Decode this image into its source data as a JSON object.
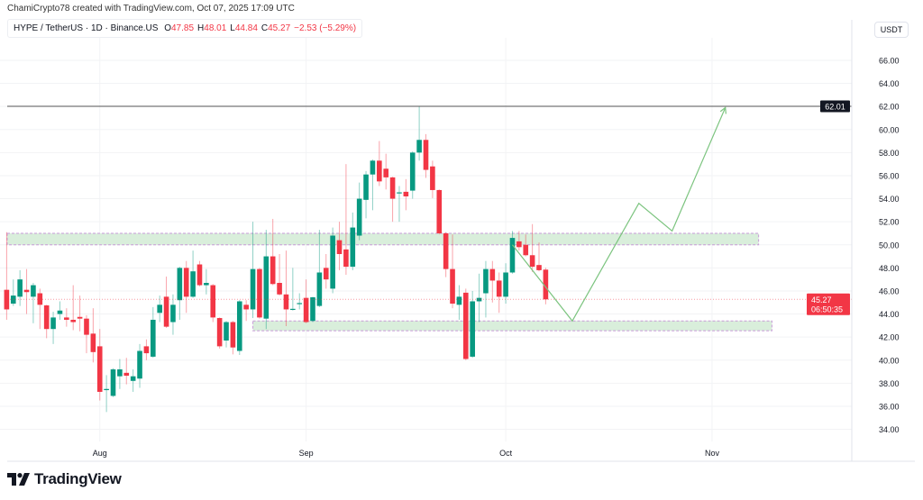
{
  "header": {
    "credit": "ChamiCrypto78 created with TradingView.com, Oct 07, 2025 17:09 UTC",
    "symbol": "HYPE / TetherUS · 1D · Binance.US",
    "o_label": "O",
    "o": "47.85",
    "h_label": "H",
    "h": "48.01",
    "l_label": "L",
    "l": "44.84",
    "c_label": "C",
    "c": "45.27",
    "change": "−2.53 (−5.29%)"
  },
  "logo": {
    "text": "TradingView"
  },
  "colors": {
    "up": "#089981",
    "down": "#f23645",
    "zone_fill": "#d9eedb",
    "zone_border": "#c79bd8",
    "projection": "#7cc47f",
    "level_line": "#555555"
  },
  "chart_data": {
    "type": "candlestick",
    "unit_label": "USDT",
    "xlim": [
      "2025-07-17",
      "2025-11-22"
    ],
    "ylim": [
      32.95,
      67.95
    ],
    "y_ticks": [
      "34.00",
      "36.00",
      "38.00",
      "40.00",
      "42.00",
      "44.00",
      "46.00",
      "48.00",
      "50.00",
      "52.00",
      "54.00",
      "56.00",
      "58.00",
      "60.00",
      "62.00",
      "64.00",
      "66.00"
    ],
    "x_ticks": [
      {
        "date": "2025-08-01",
        "label": "Aug"
      },
      {
        "date": "2025-09-01",
        "label": "Sep"
      },
      {
        "date": "2025-10-01",
        "label": "Oct"
      },
      {
        "date": "2025-11-01",
        "label": "Nov"
      }
    ],
    "grid": true,
    "candles_fields": [
      "date",
      "open",
      "high",
      "low",
      "close"
    ],
    "candles": [
      [
        "2025-07-18",
        46.1,
        51.1,
        43.5,
        44.4
      ],
      [
        "2025-07-19",
        44.9,
        47.0,
        44.7,
        45.6
      ],
      [
        "2025-07-20",
        45.5,
        47.8,
        44.7,
        47.0
      ],
      [
        "2025-07-21",
        46.1,
        47.9,
        44.0,
        45.9
      ],
      [
        "2025-07-22",
        45.5,
        46.7,
        43.2,
        46.5
      ],
      [
        "2025-07-23",
        45.8,
        46.2,
        42.7,
        44.8
      ],
      [
        "2025-07-24",
        44.75,
        44.8,
        41.9,
        42.7
      ],
      [
        "2025-07-25",
        42.7,
        44.2,
        41.4,
        43.7
      ],
      [
        "2025-07-26",
        44.0,
        45.1,
        43.5,
        44.3
      ],
      [
        "2025-07-27",
        43.7,
        44.5,
        42.9,
        43.5
      ],
      [
        "2025-07-28",
        43.5,
        46.5,
        42.6,
        43.3
      ],
      [
        "2025-07-29",
        43.75,
        45.6,
        42.5,
        43.6
      ],
      [
        "2025-07-30",
        43.6,
        43.9,
        40.6,
        42.2
      ],
      [
        "2025-07-31",
        42.3,
        44.5,
        39.8,
        40.7
      ],
      [
        "2025-08-01",
        41.2,
        42.7,
        36.5,
        37.25
      ],
      [
        "2025-08-02",
        37.4,
        38.7,
        35.5,
        37.5
      ],
      [
        "2025-08-03",
        36.9,
        39.3,
        36.8,
        39.2
      ],
      [
        "2025-08-04",
        38.6,
        40.1,
        37.5,
        39.2
      ],
      [
        "2025-08-05",
        38.9,
        40.2,
        37.9,
        38.65
      ],
      [
        "2025-08-06",
        38.2,
        39.2,
        37.25,
        38.6
      ],
      [
        "2025-08-07",
        38.4,
        41.4,
        37.6,
        40.8
      ],
      [
        "2025-08-08",
        41.2,
        41.8,
        40.0,
        40.6
      ],
      [
        "2025-08-09",
        40.3,
        44.6,
        40.2,
        43.5
      ],
      [
        "2025-08-10",
        44.1,
        45.6,
        43.3,
        44.8
      ],
      [
        "2025-08-11",
        45.5,
        47.25,
        42.8,
        42.9
      ],
      [
        "2025-08-12",
        43.3,
        45.7,
        42.2,
        44.8
      ],
      [
        "2025-08-13",
        45.2,
        48.1,
        43.5,
        48.0
      ],
      [
        "2025-08-14",
        48.0,
        48.6,
        44.1,
        45.5
      ],
      [
        "2025-08-15",
        45.5,
        49.5,
        45.4,
        47.7
      ],
      [
        "2025-08-16",
        48.3,
        48.6,
        46.4,
        46.5
      ],
      [
        "2025-08-17",
        46.5,
        47.9,
        45.7,
        46.7
      ],
      [
        "2025-08-18",
        46.5,
        46.6,
        43.3,
        43.7
      ],
      [
        "2025-08-19",
        43.65,
        43.7,
        41.0,
        41.2
      ],
      [
        "2025-08-20",
        41.7,
        43.4,
        41.1,
        43.3
      ],
      [
        "2025-08-21",
        43.3,
        43.4,
        40.5,
        41.1
      ],
      [
        "2025-08-22",
        40.8,
        45.2,
        40.45,
        45.1
      ],
      [
        "2025-08-23",
        44.8,
        45.2,
        43.4,
        44.4
      ],
      [
        "2025-08-24",
        44.4,
        52.0,
        43.65,
        47.9
      ],
      [
        "2025-08-25",
        47.9,
        48.0,
        43.6,
        43.7
      ],
      [
        "2025-08-26",
        43.6,
        51.3,
        42.7,
        49.0
      ],
      [
        "2025-08-27",
        49.0,
        52.25,
        46.5,
        46.6
      ],
      [
        "2025-08-28",
        46.7,
        49.2,
        45.6,
        45.7
      ],
      [
        "2025-08-29",
        45.7,
        49.5,
        42.95,
        44.4
      ],
      [
        "2025-08-30",
        44.4,
        48.0,
        44.3,
        44.45
      ],
      [
        "2025-08-31",
        44.9,
        45.8,
        44.4,
        44.95
      ],
      [
        "2025-09-01",
        45.4,
        47.0,
        43.2,
        43.3
      ],
      [
        "2025-09-02",
        43.4,
        45.5,
        43.3,
        45.45
      ],
      [
        "2025-09-03",
        44.7,
        51.3,
        44.6,
        47.6
      ],
      [
        "2025-09-04",
        48.0,
        49.2,
        46.2,
        47.0
      ],
      [
        "2025-09-05",
        46.2,
        51.5,
        45.8,
        50.8
      ],
      [
        "2025-09-06",
        50.4,
        52.0,
        47.8,
        49.2
      ],
      [
        "2025-09-07",
        49.6,
        57.0,
        47.4,
        48.1
      ],
      [
        "2025-09-08",
        48.1,
        52.8,
        47.8,
        51.5
      ],
      [
        "2025-09-09",
        50.8,
        55.4,
        50.4,
        54.0
      ],
      [
        "2025-09-10",
        53.9,
        56.4,
        52.3,
        56.1
      ],
      [
        "2025-09-11",
        56.1,
        57.4,
        53.0,
        57.3
      ],
      [
        "2025-09-12",
        57.3,
        59.0,
        55.1,
        55.5
      ],
      [
        "2025-09-13",
        56.6,
        57.9,
        54.8,
        55.85
      ],
      [
        "2025-09-14",
        55.85,
        55.9,
        52.0,
        54.0
      ],
      [
        "2025-09-15",
        54.5,
        55.1,
        52.0,
        54.55
      ],
      [
        "2025-09-16",
        54.6,
        55.7,
        53.0,
        54.2
      ],
      [
        "2025-09-17",
        54.7,
        58.1,
        54.0,
        58.0
      ],
      [
        "2025-09-18",
        58.0,
        62.0,
        57.3,
        59.1
      ],
      [
        "2025-09-19",
        59.1,
        59.6,
        55.8,
        56.5
      ],
      [
        "2025-09-20",
        56.8,
        57.3,
        54.05,
        54.75
      ],
      [
        "2025-09-21",
        54.75,
        54.8,
        50.9,
        51.0
      ],
      [
        "2025-09-22",
        51.0,
        51.1,
        47.2,
        47.9
      ],
      [
        "2025-09-23",
        47.9,
        50.9,
        44.5,
        44.9
      ],
      [
        "2025-09-24",
        44.8,
        46.5,
        43.5,
        45.5
      ],
      [
        "2025-09-25",
        45.85,
        46.2,
        40.0,
        40.1
      ],
      [
        "2025-09-26",
        40.3,
        46.0,
        40.2,
        45.1
      ],
      [
        "2025-09-27",
        45.1,
        47.5,
        43.3,
        45.4
      ],
      [
        "2025-09-28",
        45.8,
        48.6,
        43.7,
        47.9
      ],
      [
        "2025-09-29",
        47.9,
        48.6,
        45.0,
        46.9
      ],
      [
        "2025-09-30",
        46.9,
        47.6,
        44.1,
        45.5
      ],
      [
        "2025-10-01",
        45.5,
        48.4,
        44.9,
        47.6
      ],
      [
        "2025-10-02",
        47.6,
        51.2,
        47.5,
        50.6
      ],
      [
        "2025-10-03",
        50.3,
        51.2,
        49.5,
        49.8
      ],
      [
        "2025-10-04",
        50.0,
        50.9,
        49.0,
        49.1
      ],
      [
        "2025-10-05",
        49.1,
        51.8,
        47.65,
        48.1
      ],
      [
        "2025-10-06",
        48.25,
        50.2,
        47.7,
        47.8
      ],
      [
        "2025-10-07",
        47.85,
        48.01,
        44.84,
        45.27
      ]
    ],
    "zones": [
      {
        "from": "2025-07-17",
        "to": "2025-11-08",
        "top": 51.0,
        "bottom": 50.0
      },
      {
        "from": "2025-08-24",
        "to": "2025-11-10",
        "top": 43.4,
        "bottom": 42.55
      }
    ],
    "level_line": {
      "price": 62.01,
      "label": "62.01"
    },
    "last_price": {
      "price": 45.27,
      "label": "45.27",
      "countdown": "06:50:35"
    },
    "projection_path": [
      [
        "2025-10-02",
        50.0
      ],
      [
        "2025-10-11",
        43.4
      ],
      [
        "2025-10-21",
        53.6
      ],
      [
        "2025-10-26",
        51.2
      ],
      [
        "2025-11-03",
        61.9
      ]
    ]
  }
}
